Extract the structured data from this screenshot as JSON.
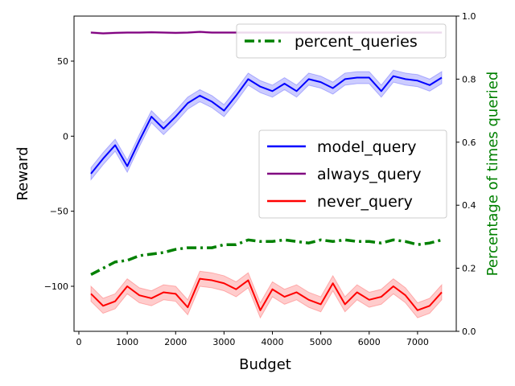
{
  "chart_data": {
    "type": "line",
    "xlabel": "Budget",
    "ylabel": "Reward",
    "ylabel_right": "Percentage of times queried",
    "xlim": [
      -100,
      7800
    ],
    "ylim": [
      -130,
      80
    ],
    "ylim_right": [
      0.0,
      1.0
    ],
    "xticks": [
      0,
      1000,
      2000,
      3000,
      4000,
      5000,
      6000,
      7000
    ],
    "xtick_labels": [
      "0",
      "1000",
      "2000",
      "3000",
      "4000",
      "5000",
      "6000",
      "7000"
    ],
    "yticks": [
      -100,
      -50,
      0,
      50
    ],
    "ytick_labels": [
      "−100",
      "−50",
      "0",
      "50"
    ],
    "yticks_right": [
      0.0,
      0.2,
      0.4,
      0.6,
      0.8,
      1.0
    ],
    "ytick_right_labels": [
      "0.0",
      "0.2",
      "0.4",
      "0.6",
      "0.8",
      "1.0"
    ],
    "grid": false,
    "x": [
      250,
      500,
      750,
      1000,
      1250,
      1500,
      1750,
      2000,
      2250,
      2500,
      2750,
      3000,
      3250,
      3500,
      3750,
      4000,
      4250,
      4500,
      4750,
      5000,
      5250,
      5500,
      5750,
      6000,
      6250,
      6500,
      6750,
      7000,
      7250,
      7500
    ],
    "series": [
      {
        "name": "model_query",
        "axis": "left",
        "color": "#0000ff",
        "values": [
          -25,
          -15,
          -6,
          -20,
          -3,
          13,
          5,
          13,
          22,
          27,
          23,
          17,
          27,
          38,
          33,
          30,
          35,
          30,
          38,
          36,
          32,
          38,
          39,
          39,
          30,
          40,
          38,
          37,
          34,
          39
        ],
        "band": 4
      },
      {
        "name": "always_query",
        "axis": "left",
        "color": "#800080",
        "values": [
          69,
          68.5,
          68.8,
          69,
          69,
          69.2,
          69,
          68.8,
          69,
          69.5,
          69,
          69,
          69,
          69,
          69,
          69,
          69,
          69,
          69,
          69,
          69,
          69,
          69,
          69,
          69,
          69,
          69,
          69,
          69,
          69
        ],
        "band": 0.6
      },
      {
        "name": "never_query",
        "axis": "left",
        "color": "#ff0000",
        "values": [
          -105,
          -113,
          -110,
          -100,
          -106,
          -108,
          -104,
          -105,
          -114,
          -95,
          -96,
          -98,
          -102,
          -96,
          -116,
          -102,
          -107,
          -104,
          -109,
          -112,
          -98,
          -112,
          -104,
          -109,
          -107,
          -100,
          -106,
          -116,
          -113,
          -104
        ],
        "band": 5
      },
      {
        "name": "percent_queries",
        "axis": "right",
        "color": "#008000",
        "style": "dashdot",
        "values": [
          0.18,
          0.2,
          0.22,
          0.225,
          0.24,
          0.245,
          0.25,
          0.26,
          0.265,
          0.265,
          0.265,
          0.275,
          0.275,
          0.29,
          0.285,
          0.285,
          0.29,
          0.285,
          0.28,
          0.29,
          0.285,
          0.29,
          0.285,
          0.285,
          0.28,
          0.29,
          0.285,
          0.275,
          0.28,
          0.29
        ]
      }
    ],
    "legend": [
      {
        "label": "model_query",
        "color": "#0000ff"
      },
      {
        "label": "always_query",
        "color": "#800080"
      },
      {
        "label": "never_query",
        "color": "#ff0000"
      }
    ],
    "legend_placement": "center-right",
    "legend_right": {
      "label": "percent_queries",
      "color": "#008000"
    },
    "legend_right_placement": "top-right"
  }
}
